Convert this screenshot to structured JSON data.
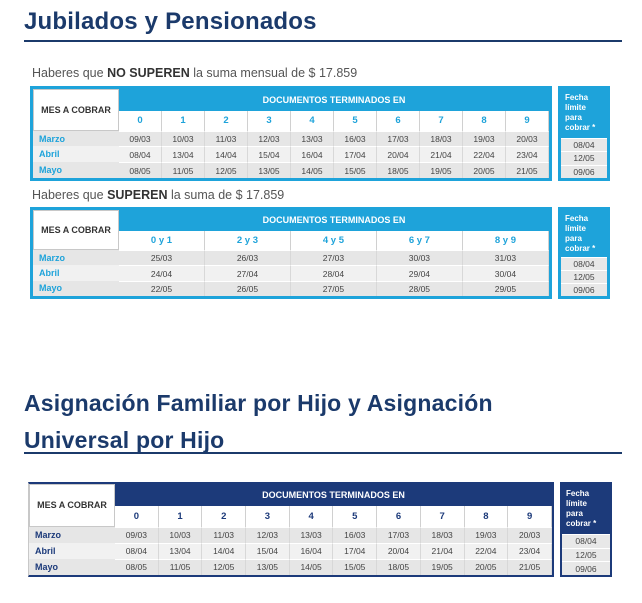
{
  "section1": {
    "title": "Jubilados y Pensionados",
    "caption1": {
      "pre": "Haberes que ",
      "bold": "NO SUPEREN",
      "post": " la suma mensual de $ 17.859"
    },
    "caption2": {
      "pre": "Haberes que ",
      "bold": "SUPEREN",
      "post": " la suma de $ 17.859"
    }
  },
  "section2": {
    "title_line1": "Asignación Familiar por Hijo y Asignación",
    "title_line2": "Universal por Hijo"
  },
  "table_labels": {
    "mes": "MES A COBRAR",
    "docs": "DOCUMENTOS TERMINADOS EN",
    "fecha_line1": "Fecha límite",
    "fecha_line2": "para cobrar *"
  },
  "table1": {
    "digits": [
      "0",
      "1",
      "2",
      "3",
      "4",
      "5",
      "6",
      "7",
      "8",
      "9"
    ],
    "rows": [
      {
        "month": "Marzo",
        "values": [
          "09/03",
          "10/03",
          "11/03",
          "12/03",
          "13/03",
          "16/03",
          "17/03",
          "18/03",
          "19/03",
          "20/03"
        ],
        "limit": "08/04"
      },
      {
        "month": "Abril",
        "values": [
          "08/04",
          "13/04",
          "14/04",
          "15/04",
          "16/04",
          "17/04",
          "20/04",
          "21/04",
          "22/04",
          "23/04"
        ],
        "limit": "12/05"
      },
      {
        "month": "Mayo",
        "values": [
          "08/05",
          "11/05",
          "12/05",
          "13/05",
          "14/05",
          "15/05",
          "18/05",
          "19/05",
          "20/05",
          "21/05"
        ],
        "limit": "09/06"
      }
    ]
  },
  "table2": {
    "digits": [
      "0 y 1",
      "2 y 3",
      "4 y 5",
      "6 y 7",
      "8 y 9"
    ],
    "rows": [
      {
        "month": "Marzo",
        "values": [
          "25/03",
          "26/03",
          "27/03",
          "30/03",
          "31/03"
        ],
        "limit": "08/04"
      },
      {
        "month": "Abril",
        "values": [
          "24/04",
          "27/04",
          "28/04",
          "29/04",
          "30/04"
        ],
        "limit": "12/05"
      },
      {
        "month": "Mayo",
        "values": [
          "22/05",
          "26/05",
          "27/05",
          "28/05",
          "29/05"
        ],
        "limit": "09/06"
      }
    ]
  },
  "table3": {
    "digits": [
      "0",
      "1",
      "2",
      "3",
      "4",
      "5",
      "6",
      "7",
      "8",
      "9"
    ],
    "rows": [
      {
        "month": "Marzo",
        "values": [
          "09/03",
          "10/03",
          "11/03",
          "12/03",
          "13/03",
          "16/03",
          "17/03",
          "18/03",
          "19/03",
          "20/03"
        ],
        "limit": "08/04"
      },
      {
        "month": "Abril",
        "values": [
          "08/04",
          "13/04",
          "14/04",
          "15/04",
          "16/04",
          "17/04",
          "20/04",
          "21/04",
          "22/04",
          "23/04"
        ],
        "limit": "12/05"
      },
      {
        "month": "Mayo",
        "values": [
          "08/05",
          "11/05",
          "12/05",
          "13/05",
          "14/05",
          "15/05",
          "18/05",
          "19/05",
          "20/05",
          "21/05"
        ],
        "limit": "09/06"
      }
    ]
  },
  "colors": {
    "navy": "#1b3a6b",
    "light_blue": "#1ea3da",
    "table_navy": "#1c3a7a"
  }
}
